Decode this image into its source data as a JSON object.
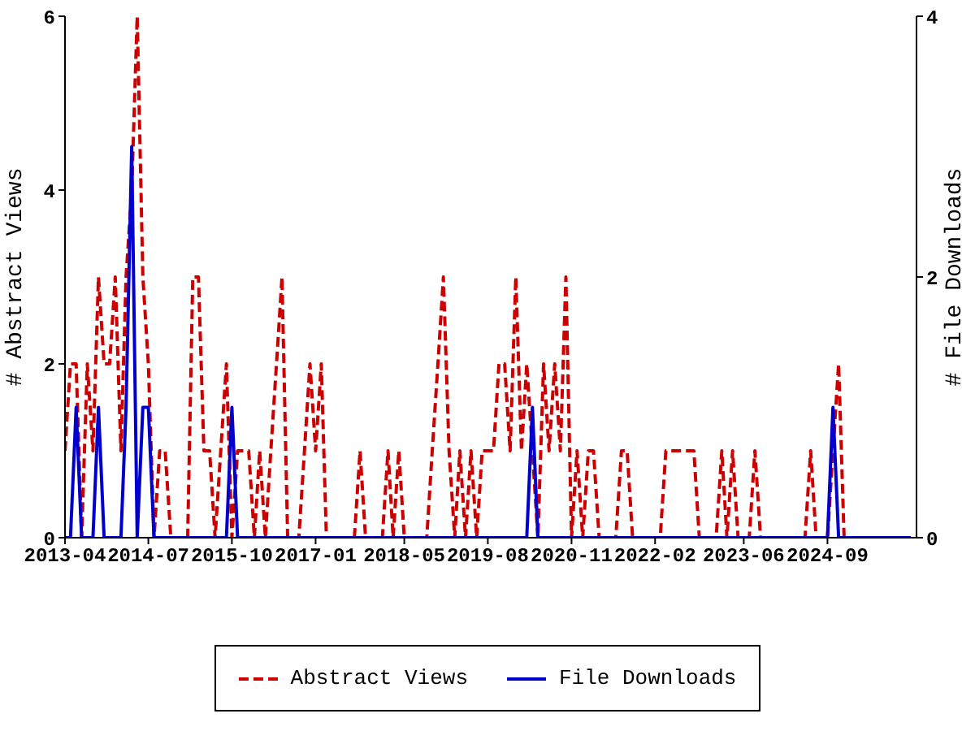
{
  "chart_data": {
    "type": "line",
    "ylabel": "# Abstract Views",
    "y2label": "# File Downloads",
    "x": [
      "2013-04",
      "2013-05",
      "2013-06",
      "2013-07",
      "2013-08",
      "2013-09",
      "2013-10",
      "2013-11",
      "2013-12",
      "2014-01",
      "2014-02",
      "2014-03",
      "2014-04",
      "2014-05",
      "2014-06",
      "2014-07",
      "2014-08",
      "2014-09",
      "2014-10",
      "2014-11",
      "2014-12",
      "2015-01",
      "2015-02",
      "2015-03",
      "2015-04",
      "2015-05",
      "2015-06",
      "2015-07",
      "2015-08",
      "2015-09",
      "2015-10",
      "2015-11",
      "2015-12",
      "2016-01",
      "2016-02",
      "2016-03",
      "2016-04",
      "2016-05",
      "2016-06",
      "2016-07",
      "2016-08",
      "2016-09",
      "2016-10",
      "2016-11",
      "2016-12",
      "2017-01",
      "2017-02",
      "2017-03",
      "2017-04",
      "2017-05",
      "2017-06",
      "2017-07",
      "2017-08",
      "2017-09",
      "2017-10",
      "2017-11",
      "2017-12",
      "2018-01",
      "2018-02",
      "2018-03",
      "2018-04",
      "2018-05",
      "2018-06",
      "2018-07",
      "2018-08",
      "2018-09",
      "2018-10",
      "2018-11",
      "2018-12",
      "2019-01",
      "2019-02",
      "2019-03",
      "2019-04",
      "2019-05",
      "2019-06",
      "2019-07",
      "2019-08",
      "2019-09",
      "2019-10",
      "2019-11",
      "2019-12",
      "2020-01",
      "2020-02",
      "2020-03",
      "2020-04",
      "2020-05",
      "2020-06",
      "2020-07",
      "2020-08",
      "2020-09",
      "2020-10",
      "2020-11",
      "2020-12",
      "2021-01",
      "2021-02",
      "2021-03",
      "2021-04",
      "2021-05",
      "2021-06",
      "2021-07",
      "2021-08",
      "2021-09",
      "2021-10",
      "2021-11",
      "2021-12",
      "2022-01",
      "2022-02",
      "2022-03",
      "2022-04",
      "2022-05",
      "2022-06",
      "2022-07",
      "2022-08",
      "2022-09",
      "2022-10",
      "2022-11",
      "2022-12",
      "2023-01",
      "2023-02",
      "2023-03",
      "2023-04",
      "2023-05",
      "2023-06",
      "2023-07",
      "2023-08",
      "2023-09",
      "2023-10",
      "2023-11",
      "2023-12",
      "2024-01",
      "2024-02",
      "2024-03",
      "2024-04",
      "2024-05",
      "2024-06",
      "2024-07",
      "2024-08",
      "2024-09",
      "2024-10",
      "2024-11",
      "2024-12",
      "2025-01",
      "2025-02",
      "2025-03",
      "2025-04",
      "2025-05",
      "2025-06",
      "2025-07",
      "2025-08",
      "2025-09",
      "2025-10",
      "2025-11",
      "2025-12"
    ],
    "series": [
      {
        "name": "Abstract Views",
        "color": "#cc0000",
        "line_style": "dashed",
        "values": [
          1,
          2,
          2,
          0,
          2,
          1,
          3,
          2,
          2,
          3,
          1,
          3,
          4,
          6,
          3,
          2,
          0,
          1,
          1,
          0,
          0,
          0,
          0,
          3,
          3,
          1,
          1,
          0,
          1,
          2,
          0,
          1,
          1,
          1,
          0,
          1,
          0,
          1,
          2,
          3,
          0,
          0,
          0,
          1,
          2,
          1,
          2,
          0,
          0,
          0,
          0,
          0,
          0,
          1,
          0,
          0,
          0,
          0,
          1,
          0,
          1,
          0,
          0,
          0,
          0,
          0,
          1,
          2,
          3,
          1,
          0,
          1,
          0,
          1,
          0,
          1,
          1,
          1,
          2,
          2,
          1,
          3,
          1,
          2,
          1,
          0,
          2,
          1,
          2,
          1,
          3,
          0,
          1,
          0,
          1,
          1,
          0,
          0,
          0,
          0,
          1,
          1,
          0,
          0,
          0,
          0,
          0,
          0,
          1,
          1,
          1,
          1,
          1,
          1,
          0,
          0,
          0,
          0,
          1,
          0,
          1,
          0,
          0,
          0,
          1,
          0,
          0,
          0,
          0,
          0,
          0,
          0,
          0,
          0,
          1,
          0,
          0,
          0,
          1,
          2,
          0,
          0,
          null,
          null,
          null,
          null,
          null,
          null,
          null,
          null,
          null,
          null,
          null
        ]
      },
      {
        "name": "File Downloads",
        "color": "#0000cc",
        "line_style": "solid",
        "axis": "y2",
        "values": [
          0,
          0,
          1,
          0,
          0,
          0,
          1,
          0,
          0,
          0,
          0,
          1,
          3,
          0,
          1,
          1,
          0,
          0,
          0,
          0,
          0,
          0,
          0,
          0,
          0,
          0,
          0,
          0,
          0,
          0,
          1,
          0,
          0,
          0,
          0,
          0,
          0,
          0,
          0,
          0,
          0,
          0,
          0,
          0,
          0,
          0,
          0,
          0,
          0,
          0,
          0,
          0,
          0,
          0,
          0,
          0,
          0,
          0,
          0,
          0,
          0,
          0,
          0,
          0,
          0,
          0,
          0,
          0,
          0,
          0,
          0,
          0,
          0,
          0,
          0,
          0,
          0,
          0,
          0,
          0,
          0,
          0,
          0,
          0,
          1,
          0,
          0,
          0,
          0,
          0,
          0,
          0,
          0,
          0,
          0,
          0,
          0,
          0,
          0,
          0,
          0,
          0,
          0,
          0,
          0,
          0,
          0,
          0,
          0,
          0,
          0,
          0,
          0,
          0,
          0,
          0,
          0,
          0,
          0,
          0,
          0,
          0,
          0,
          0,
          0,
          0,
          0,
          0,
          0,
          0,
          0,
          0,
          0,
          0,
          0,
          0,
          0,
          0,
          1,
          0,
          0,
          0,
          0,
          0,
          0,
          0,
          0,
          0,
          0,
          0,
          0,
          0,
          0
        ]
      }
    ],
    "xlim": [
      "2013-04",
      "2026-01"
    ],
    "xticks": [
      "2013-04",
      "2014-07",
      "2015-10",
      "2017-01",
      "2018-05",
      "2019-08",
      "2020-11",
      "2022-02",
      "2023-06",
      "2024-09"
    ],
    "ylim": [
      0,
      6
    ],
    "yticks": [
      0,
      2,
      4,
      6
    ],
    "y2lim": [
      0,
      4
    ],
    "y2ticks": [
      0,
      2,
      4
    ],
    "grid": false,
    "legend": "bottom",
    "marker": "none"
  }
}
